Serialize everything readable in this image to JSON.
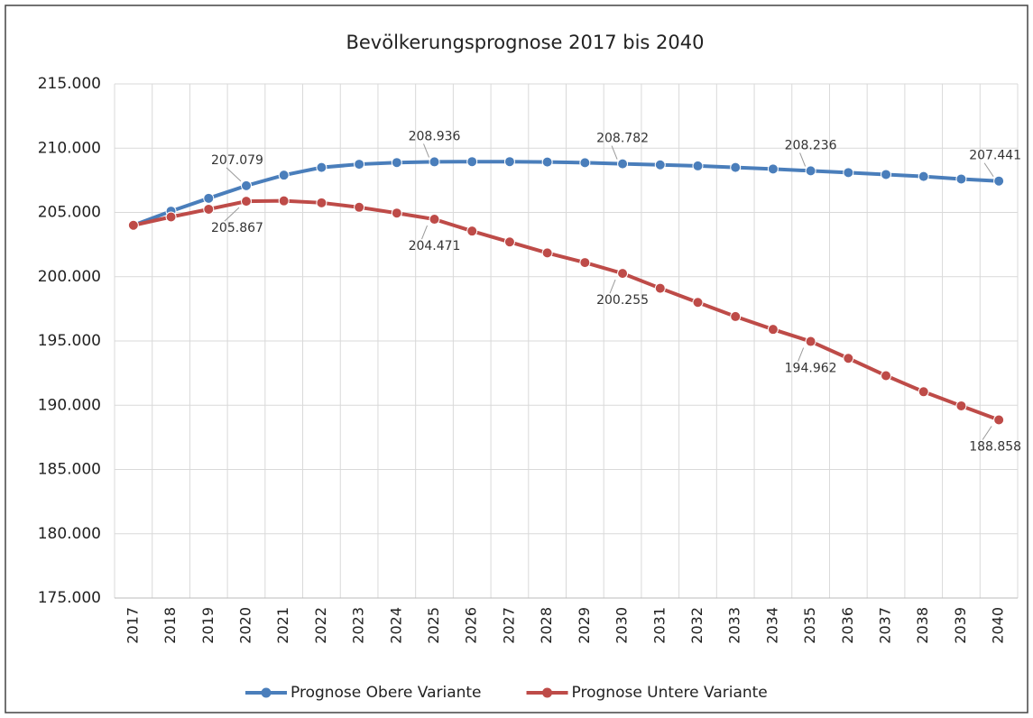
{
  "chart_data": {
    "type": "line",
    "title": "Bevölkerungsprognose  2017 bis 2040",
    "categories": [
      "2017",
      "2018",
      "2019",
      "2020",
      "2021",
      "2022",
      "2023",
      "2024",
      "2025",
      "2026",
      "2027",
      "2028",
      "2029",
      "2030",
      "2031",
      "2032",
      "2033",
      "2034",
      "2035",
      "2036",
      "2037",
      "2038",
      "2039",
      "2040"
    ],
    "series": [
      {
        "name": "Prognose Obere Variante",
        "color": "#4a7ebb",
        "values": [
          204000,
          205100,
          206100,
          207079,
          207900,
          208500,
          208750,
          208880,
          208936,
          208950,
          208950,
          208920,
          208870,
          208782,
          208700,
          208620,
          208500,
          208380,
          208236,
          208100,
          207950,
          207800,
          207600,
          207441
        ],
        "value_labels": [
          null,
          null,
          null,
          "207.079",
          null,
          null,
          null,
          null,
          "208.936",
          null,
          null,
          null,
          null,
          "208.782",
          null,
          null,
          null,
          null,
          "208.236",
          null,
          null,
          null,
          null,
          "207.441"
        ]
      },
      {
        "name": "Prognose Untere Variante",
        "color": "#be4b48",
        "values": [
          204000,
          204650,
          205250,
          205867,
          205900,
          205750,
          205400,
          204950,
          204471,
          203550,
          202700,
          201850,
          201100,
          200255,
          199100,
          198000,
          196900,
          195900,
          194962,
          193650,
          192300,
          191050,
          189950,
          188858
        ],
        "value_labels": [
          null,
          null,
          null,
          "205.867",
          null,
          null,
          null,
          null,
          "204.471",
          null,
          null,
          null,
          null,
          "200.255",
          null,
          null,
          null,
          null,
          "194.962",
          null,
          null,
          null,
          null,
          "188.858"
        ]
      }
    ],
    "ylim": [
      175000,
      215000
    ],
    "yticks": [
      {
        "value": 175000,
        "label": "175.000"
      },
      {
        "value": 180000,
        "label": "180.000"
      },
      {
        "value": 185000,
        "label": "185.000"
      },
      {
        "value": 190000,
        "label": "190.000"
      },
      {
        "value": 195000,
        "label": "195.000"
      },
      {
        "value": 200000,
        "label": "200.000"
      },
      {
        "value": 205000,
        "label": "205.000"
      },
      {
        "value": 210000,
        "label": "210.000"
      },
      {
        "value": 215000,
        "label": "215.000"
      }
    ],
    "grid": true,
    "legend": "bottom"
  }
}
